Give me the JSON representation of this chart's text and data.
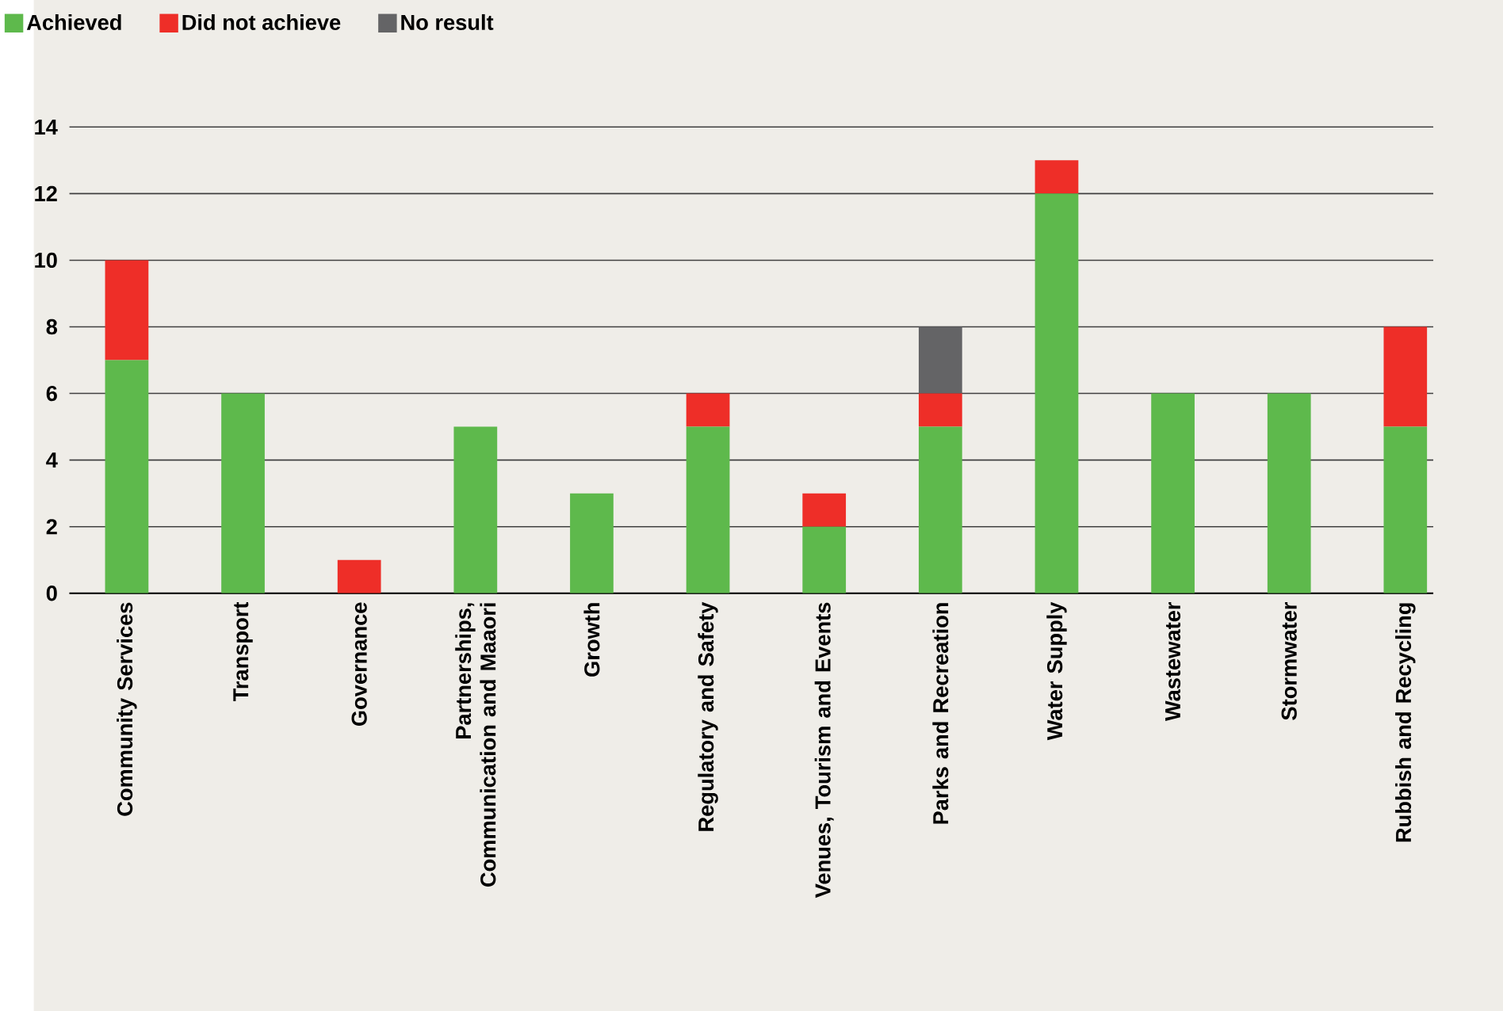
{
  "chart_data": {
    "type": "bar",
    "stacked": true,
    "categories": [
      "Community Services",
      "Transport",
      "Governance",
      "Partnerships, Communication and Maaori",
      "Growth",
      "Regulatory and Safety",
      "Venues, Tourism and Events",
      "Parks and Recreation",
      "Water Supply",
      "Wastewater",
      "Stormwater",
      "Rubbish and Recycling"
    ],
    "series": [
      {
        "name": "Achieved",
        "color": "#5eb94c",
        "values": [
          7,
          6,
          0,
          5,
          3,
          5,
          2,
          5,
          12,
          6,
          6,
          5
        ]
      },
      {
        "name": "Did not achieve",
        "color": "#ee2e28",
        "values": [
          3,
          0,
          1,
          0,
          0,
          1,
          1,
          1,
          1,
          0,
          0,
          3
        ]
      },
      {
        "name": "No result",
        "color": "#646466",
        "values": [
          0,
          0,
          0,
          0,
          0,
          0,
          0,
          2,
          0,
          0,
          0,
          0
        ]
      }
    ],
    "ylim": [
      0,
      14
    ],
    "yticks": [
      0,
      2,
      4,
      6,
      8,
      10,
      12,
      14
    ],
    "grid": "y",
    "legend": "top left"
  }
}
